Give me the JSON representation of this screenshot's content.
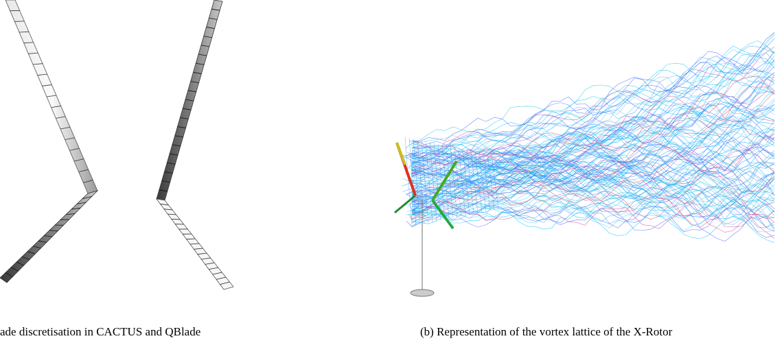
{
  "captions": {
    "a": "ade discretisation in CACTUS and QBlade",
    "b": "(b) Representation of the vortex lattice of the X-Rotor"
  }
}
